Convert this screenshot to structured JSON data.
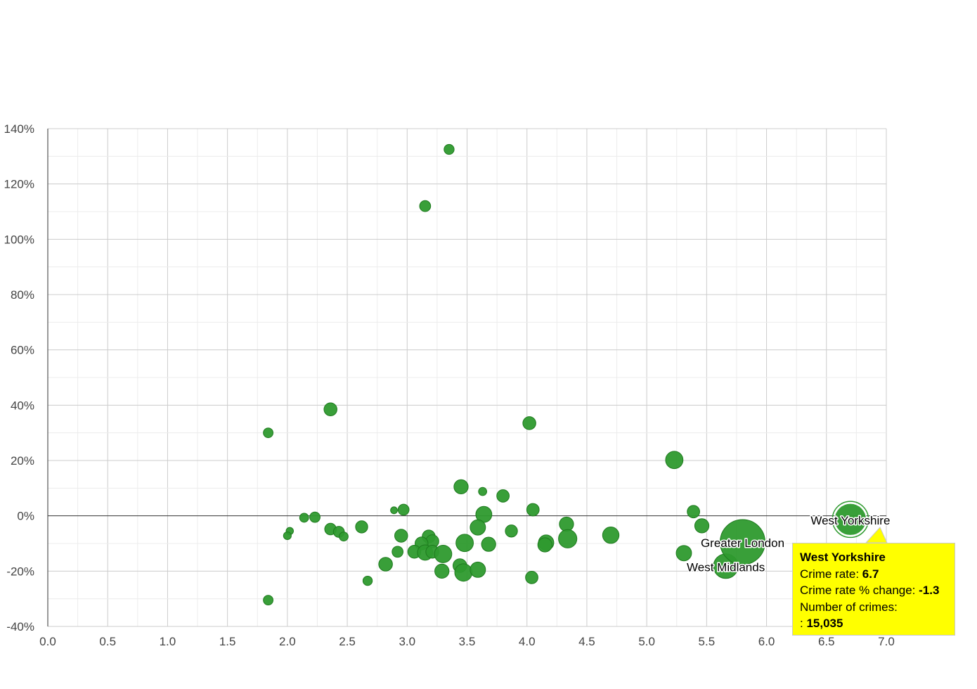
{
  "chart_data": {
    "type": "scatter",
    "title": "",
    "xlabel": "",
    "ylabel": "",
    "xlim": [
      0,
      7
    ],
    "ylim": [
      -40,
      140
    ],
    "x_ticks": [
      "0.0",
      "0.5",
      "1.0",
      "1.5",
      "2.0",
      "2.5",
      "3.0",
      "3.5",
      "4.0",
      "4.5",
      "5.0",
      "5.5",
      "6.0",
      "6.5",
      "7.0"
    ],
    "y_ticks": [
      "-40%",
      "-20%",
      "0%",
      "20%",
      "40%",
      "60%",
      "80%",
      "100%",
      "120%",
      "140%"
    ],
    "grid": true,
    "legend": "none",
    "colors": {
      "bubble": "#2e9a2e",
      "bubble_stroke": "#1e7a1e",
      "tooltip_bg": "#ffff00"
    },
    "series": [
      {
        "points": [
          {
            "x": 3.35,
            "y": 132.5,
            "size": 1500
          },
          {
            "x": 3.15,
            "y": 112.0,
            "size": 1800
          },
          {
            "x": 2.36,
            "y": 38.5,
            "size": 2500
          },
          {
            "x": 1.84,
            "y": 30.0,
            "size": 1400
          },
          {
            "x": 4.02,
            "y": 33.5,
            "size": 2500
          },
          {
            "x": 5.23,
            "y": 20.2,
            "size": 4500
          },
          {
            "x": 3.45,
            "y": 10.5,
            "size": 3000
          },
          {
            "x": 3.63,
            "y": 8.8,
            "size": 1000
          },
          {
            "x": 3.8,
            "y": 7.2,
            "size": 2300
          },
          {
            "x": 2.89,
            "y": 2.0,
            "size": 700
          },
          {
            "x": 2.97,
            "y": 2.2,
            "size": 1800
          },
          {
            "x": 4.05,
            "y": 2.2,
            "size": 2300
          },
          {
            "x": 3.64,
            "y": 0.5,
            "size": 3800
          },
          {
            "x": 5.39,
            "y": 1.5,
            "size": 2300
          },
          {
            "x": 2.14,
            "y": -0.7,
            "size": 1200
          },
          {
            "x": 2.23,
            "y": -0.5,
            "size": 1600
          },
          {
            "x": 2.02,
            "y": -5.5,
            "size": 800
          },
          {
            "x": 2.0,
            "y": -7.2,
            "size": 900
          },
          {
            "x": 2.36,
            "y": -4.8,
            "size": 2000
          },
          {
            "x": 2.43,
            "y": -5.8,
            "size": 1800
          },
          {
            "x": 2.47,
            "y": -7.5,
            "size": 1200
          },
          {
            "x": 2.62,
            "y": -4.0,
            "size": 2200
          },
          {
            "x": 2.95,
            "y": -7.2,
            "size": 2500
          },
          {
            "x": 3.18,
            "y": -7.5,
            "size": 2500
          },
          {
            "x": 3.21,
            "y": -9.2,
            "size": 2500
          },
          {
            "x": 3.12,
            "y": -10.0,
            "size": 2500
          },
          {
            "x": 3.59,
            "y": -4.2,
            "size": 3500
          },
          {
            "x": 3.87,
            "y": -5.5,
            "size": 2200
          },
          {
            "x": 4.33,
            "y": -3.0,
            "size": 3000
          },
          {
            "x": 4.7,
            "y": -7.0,
            "size": 4000
          },
          {
            "x": 5.46,
            "y": -3.6,
            "size": 3000
          },
          {
            "x": 3.48,
            "y": -9.8,
            "size": 4500
          },
          {
            "x": 3.68,
            "y": -10.3,
            "size": 3000
          },
          {
            "x": 4.16,
            "y": -9.7,
            "size": 3500
          },
          {
            "x": 4.15,
            "y": -10.5,
            "size": 3000
          },
          {
            "x": 4.34,
            "y": -8.3,
            "size": 5000
          },
          {
            "x": 2.92,
            "y": -13.0,
            "size": 1800
          },
          {
            "x": 3.06,
            "y": -13.0,
            "size": 2500
          },
          {
            "x": 3.15,
            "y": -13.3,
            "size": 3500
          },
          {
            "x": 3.21,
            "y": -13.0,
            "size": 2500
          },
          {
            "x": 3.3,
            "y": -13.8,
            "size": 4500
          },
          {
            "x": 5.31,
            "y": -13.5,
            "size": 3500
          },
          {
            "x": 2.82,
            "y": -17.5,
            "size": 2800
          },
          {
            "x": 3.44,
            "y": -18.0,
            "size": 2800
          },
          {
            "x": 3.29,
            "y": -20.0,
            "size": 3000
          },
          {
            "x": 3.47,
            "y": -20.5,
            "size": 4500
          },
          {
            "x": 3.59,
            "y": -19.5,
            "size": 3500
          },
          {
            "x": 4.04,
            "y": -22.3,
            "size": 2300
          },
          {
            "x": 2.67,
            "y": -23.5,
            "size": 1300
          },
          {
            "x": 1.84,
            "y": -30.5,
            "size": 1400
          },
          {
            "x": 5.66,
            "y": -18.2,
            "size": 9000,
            "label": "West Midlands"
          },
          {
            "x": 5.8,
            "y": -9.5,
            "size": 30000,
            "label": "Greater London"
          },
          {
            "x": 6.7,
            "y": -1.3,
            "size": 15035,
            "label": "West Yorkshire",
            "hovered": true
          }
        ]
      }
    ],
    "tooltip": {
      "title": "West Yorkshire",
      "rate_label": "Crime rate: ",
      "rate_value": "6.7",
      "change_label": "Crime rate % change: ",
      "change_value": "-1.3",
      "count_label": "Number of crimes:",
      "count_prefix": ": ",
      "count_value": "15,035"
    }
  }
}
